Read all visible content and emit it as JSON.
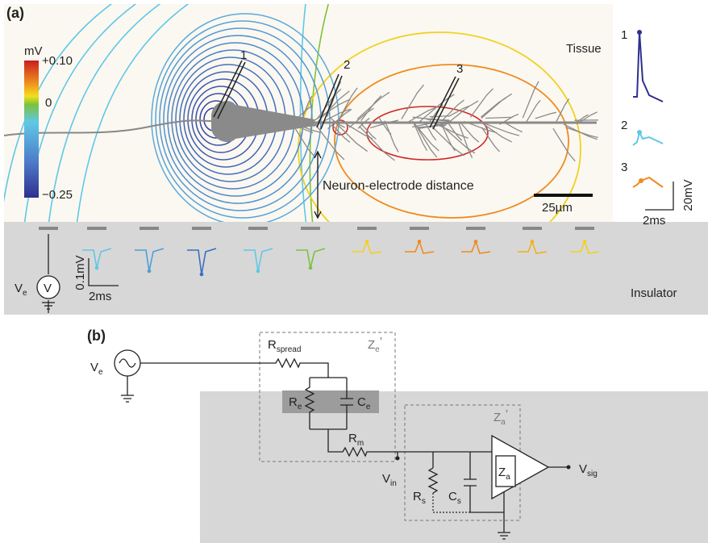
{
  "panel_a": {
    "label": "(a)",
    "colorbar": {
      "unit": "mV",
      "top": "+0.10",
      "middle": "0",
      "bottom": "−0.25"
    },
    "region_labels": {
      "tissue": "Tissue",
      "insulator": "Insulator"
    },
    "electrodes": [
      "1",
      "2",
      "3"
    ],
    "distance_label": "Neuron-electrode distance",
    "scale_bar": "25µm",
    "source": {
      "base": "V",
      "sub": "e",
      "symbol": "V"
    },
    "trace_scale": {
      "voltage": "0.1mV",
      "time": "2ms"
    },
    "insets": {
      "labels": [
        "1",
        "2",
        "3"
      ],
      "voltage": "20mV",
      "time": "2ms"
    }
  },
  "panel_b": {
    "label": "(b)",
    "source": {
      "base": "V",
      "sub": "e"
    },
    "r_spread": {
      "base": "R",
      "sub": "spread"
    },
    "ze": {
      "base": "Z",
      "sub": "e",
      "prime": "’"
    },
    "re": {
      "base": "R",
      "sub": "e"
    },
    "ce": {
      "base": "C",
      "sub": "e"
    },
    "rm": {
      "base": "R",
      "sub": "m"
    },
    "vin": {
      "base": "V",
      "sub": "in"
    },
    "rs": {
      "base": "R",
      "sub": "s"
    },
    "cs": {
      "base": "C",
      "sub": "s"
    },
    "za_box": {
      "base": "Z",
      "sub": "a",
      "prime": "’"
    },
    "za": {
      "base": "Z",
      "sub": "a"
    },
    "vsig": {
      "base": "V",
      "sub": "sig"
    }
  }
}
